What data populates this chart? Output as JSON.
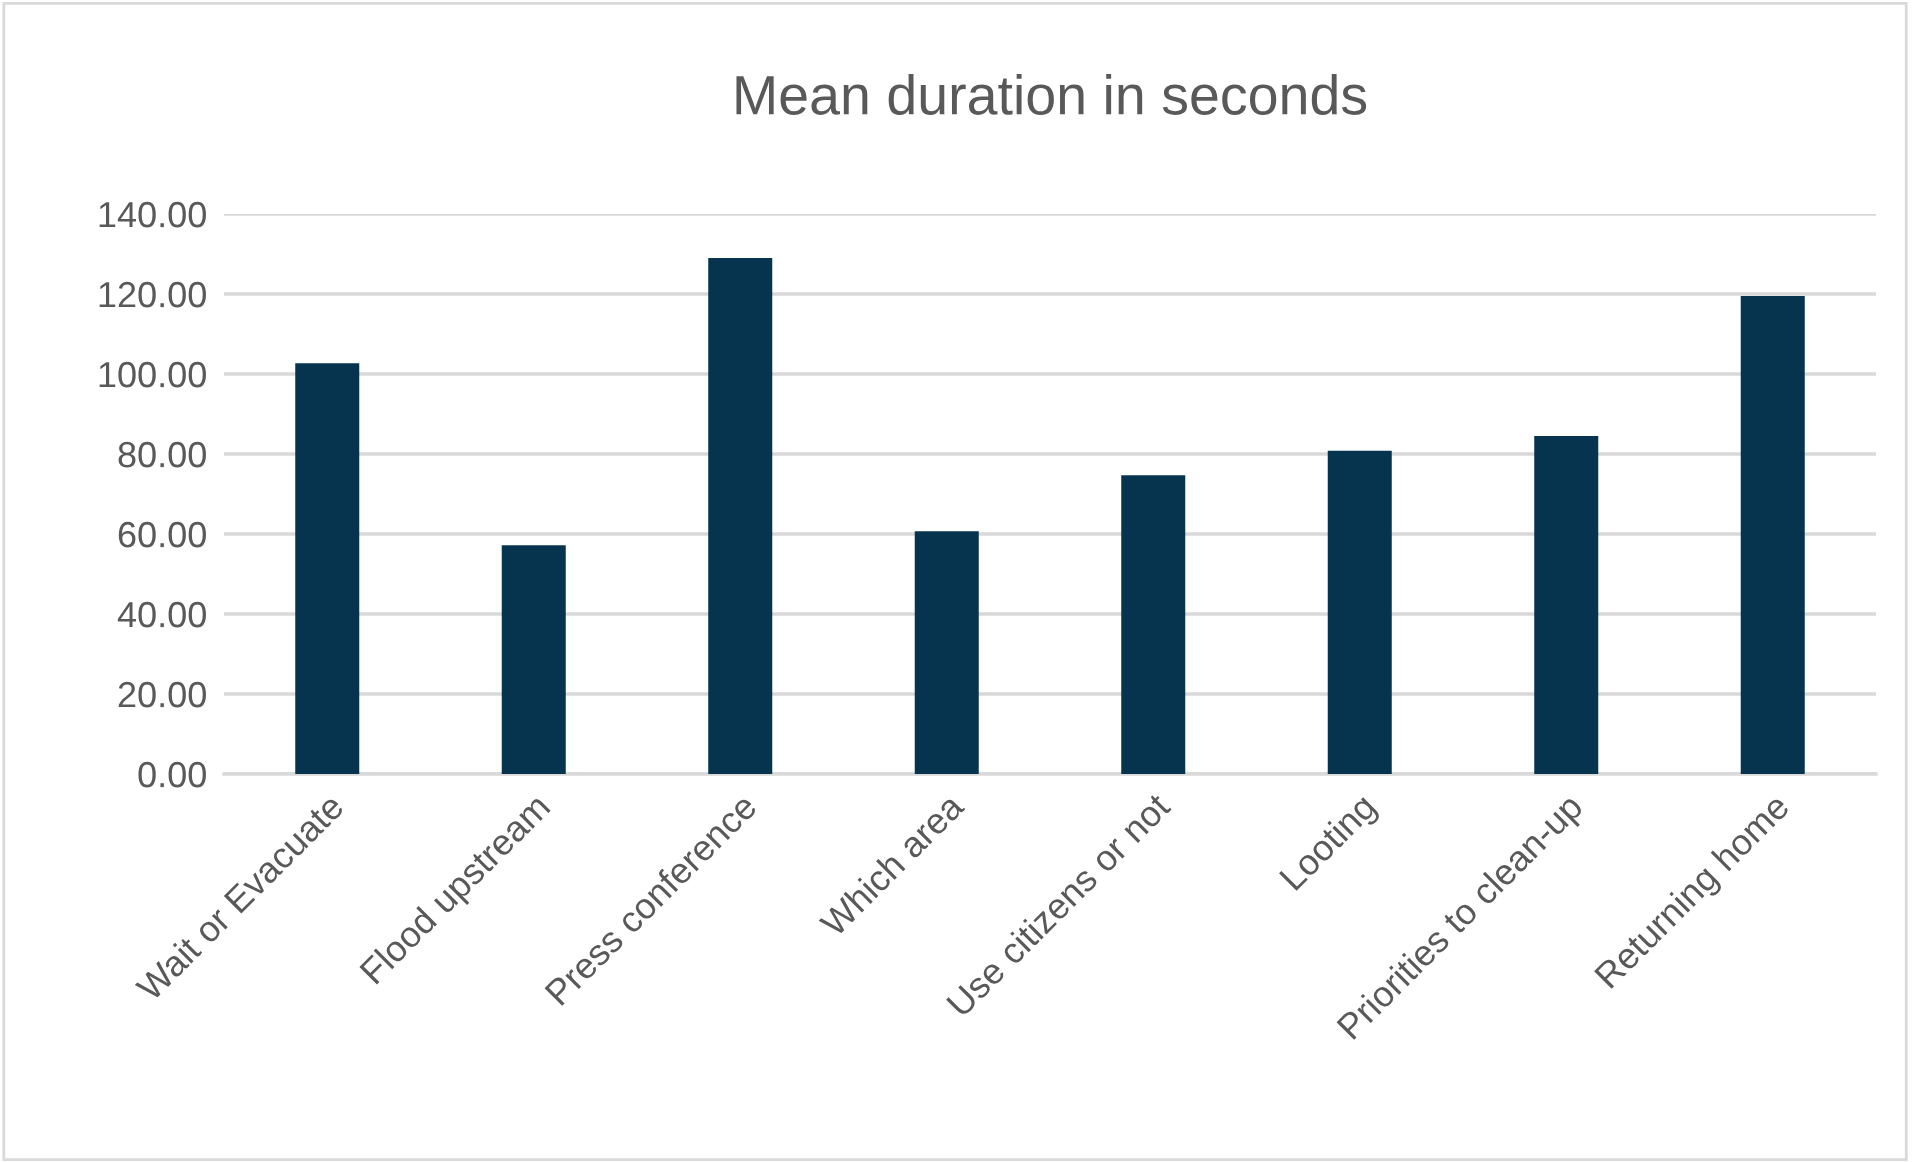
{
  "chart_data": {
    "type": "bar",
    "title": "Mean duration in seconds",
    "categories": [
      "Wait or Evacuate",
      "Flood upstream",
      "Press conference",
      "Which area",
      "Use citizens or not",
      "Looting",
      "Priorities to clean-up",
      "Returning home"
    ],
    "values": [
      102.7,
      57.2,
      129,
      60.7,
      74.7,
      80.8,
      84.5,
      119.5
    ],
    "color": "#06344f",
    "ylim": [
      0,
      140
    ],
    "yticks": [
      {
        "value": 0,
        "label": "0.00"
      },
      {
        "value": 20,
        "label": "20.00"
      },
      {
        "value": 40,
        "label": "40.00"
      },
      {
        "value": 60,
        "label": "60.00"
      },
      {
        "value": 80,
        "label": "80.00"
      },
      {
        "value": 100,
        "label": "100.00"
      },
      {
        "value": 120,
        "label": "120.00"
      },
      {
        "value": 140,
        "label": "140.00"
      }
    ],
    "grid": "y",
    "legend": false
  }
}
